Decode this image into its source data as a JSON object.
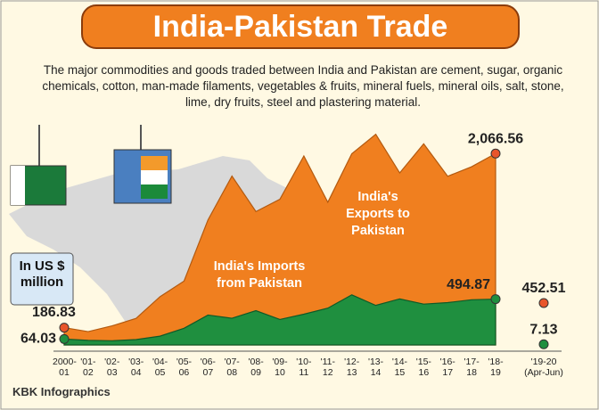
{
  "chart_data": {
    "type": "area",
    "title": "India-Pakistan Trade",
    "subtitle": "The major commodities and goods traded between India and Pakistan are cement, sugar, organic chemicals, cotton, man-made filaments, vegetables & fruits, mineral fuels, mineral oils, salt, stone, lime, dry fruits, steel and plastering material.",
    "unit_label": "In US $ million",
    "source": "KBK Infographics",
    "categories": [
      "2000-01",
      "'01-02",
      "'02-03",
      "'03-04",
      "'04-05",
      "'05-06",
      "'06-07",
      "'07-08",
      "'08-09",
      "'09-10",
      "'10-11",
      "'11-12",
      "'12-13",
      "'13-14",
      "'14-15",
      "'15-16",
      "'16-17",
      "'17-18",
      "'18-19",
      "'19-20 (Apr-Jun)"
    ],
    "series": [
      {
        "name": "India's Exports to Pakistan",
        "color": "#f07f1f",
        "values": [
          186.83,
          144,
          206,
          287,
          521,
          689,
          1350,
          1823,
          1440,
          1573,
          2040,
          1541,
          2064,
          2274,
          1857,
          2171,
          1821,
          1924,
          2066.56,
          452.51
        ],
        "value_labels": [
          "186.83",
          null,
          null,
          null,
          null,
          null,
          null,
          null,
          null,
          null,
          null,
          null,
          null,
          null,
          null,
          null,
          null,
          null,
          "2,066.56",
          "452.51"
        ]
      },
      {
        "name": "India's Imports from Pakistan",
        "color": "#1f8f3f",
        "values": [
          64.03,
          49,
          45,
          58,
          95,
          180,
          323,
          288,
          370,
          275,
          332,
          397,
          541,
          427,
          497,
          441,
          457,
          488,
          494.87,
          7.13
        ],
        "value_labels": [
          "64.03",
          null,
          null,
          null,
          null,
          null,
          null,
          null,
          null,
          null,
          null,
          null,
          null,
          null,
          null,
          null,
          null,
          null,
          "494.87",
          "7.13"
        ]
      }
    ],
    "ylim": [
      0,
      2300
    ]
  }
}
